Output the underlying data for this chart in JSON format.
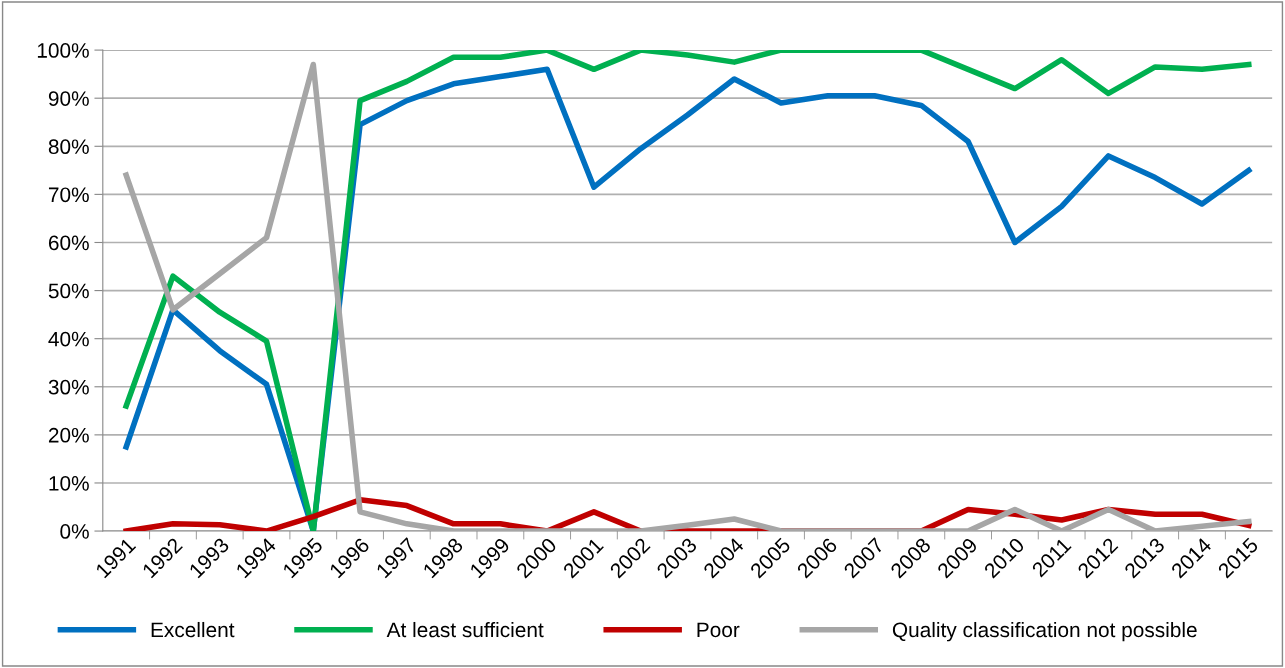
{
  "chart_data": {
    "type": "line",
    "categories": [
      "1991",
      "1992",
      "1993",
      "1994",
      "1995",
      "1996",
      "1997",
      "1998",
      "1999",
      "2000",
      "2001",
      "2002",
      "2003",
      "2004",
      "2005",
      "2006",
      "2007",
      "2008",
      "2009",
      "2010",
      "2011",
      "2012",
      "2013",
      "2014",
      "2015"
    ],
    "series": [
      {
        "name": "Excellent",
        "color": "#0070c0",
        "values": [
          17.5,
          46,
          37.5,
          30.5,
          0,
          84.5,
          89.5,
          93,
          94.5,
          96,
          71.5,
          79.5,
          86.5,
          94,
          89,
          90.5,
          90.5,
          88.5,
          81,
          60,
          67.5,
          78,
          73.5,
          68,
          75
        ]
      },
      {
        "name": "At least sufficient",
        "color": "#00b050",
        "values": [
          26,
          53,
          45.5,
          39.5,
          0,
          89.5,
          93.5,
          98.5,
          98.5,
          100,
          96,
          100,
          99,
          97.5,
          100,
          100,
          100,
          100,
          96,
          92,
          98,
          91,
          96.5,
          96,
          97
        ]
      },
      {
        "name": "Poor",
        "color": "#c00000",
        "values": [
          0,
          1.5,
          1.3,
          0,
          3,
          6.5,
          5.3,
          1.5,
          1.5,
          0,
          4,
          0,
          0,
          0,
          0,
          0,
          0,
          0,
          4.5,
          3.5,
          2.3,
          4.5,
          3.5,
          3.5,
          1.2
        ]
      },
      {
        "name": "Quality classification not possible",
        "color": "#a6a6a6",
        "values": [
          74,
          46,
          53.5,
          61,
          97,
          4,
          1.5,
          0,
          0,
          0,
          0,
          0,
          1.2,
          2.5,
          0,
          0,
          0,
          0,
          0,
          4.5,
          0,
          4.5,
          0,
          1,
          2
        ]
      }
    ],
    "ylim": [
      0,
      100
    ],
    "yticks": [
      {
        "value": 0,
        "label": "0%"
      },
      {
        "value": 10,
        "label": "10%"
      },
      {
        "value": 20,
        "label": "20%"
      },
      {
        "value": 30,
        "label": "30%"
      },
      {
        "value": 40,
        "label": "40%"
      },
      {
        "value": 50,
        "label": "50%"
      },
      {
        "value": 60,
        "label": "60%"
      },
      {
        "value": 70,
        "label": "70%"
      },
      {
        "value": 80,
        "label": "80%"
      },
      {
        "value": 90,
        "label": "90%"
      },
      {
        "value": 100,
        "label": "100%"
      }
    ],
    "grid": "y",
    "legend": "bottom",
    "marker": "none",
    "line_style": "solid"
  }
}
